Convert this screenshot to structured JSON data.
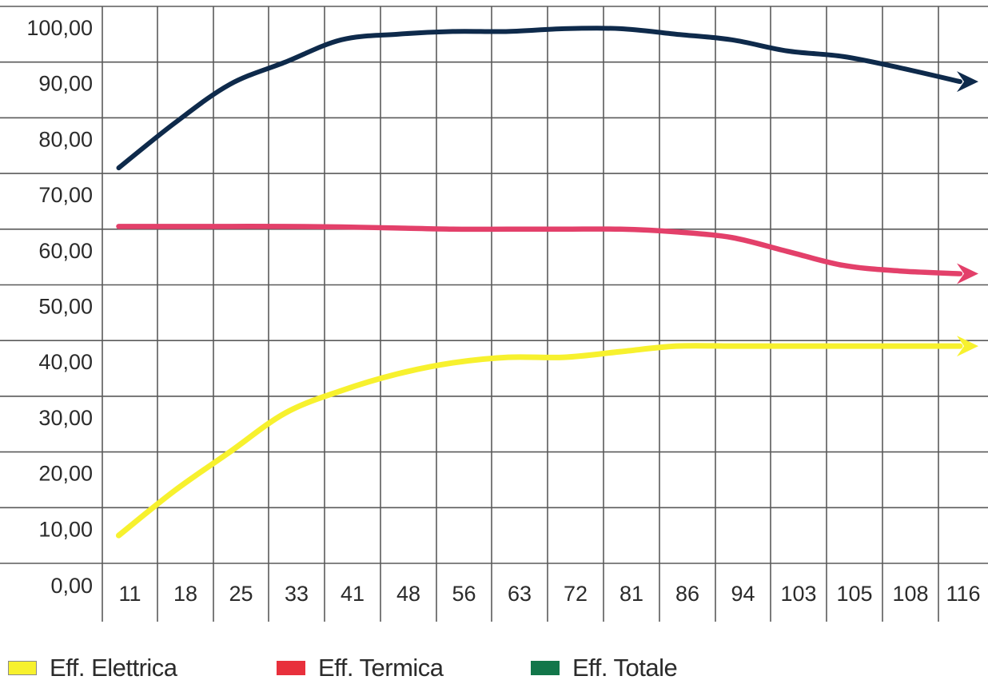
{
  "chart_data": {
    "type": "line",
    "title": "",
    "xlabel": "",
    "ylabel": "",
    "categories": [
      "11",
      "18",
      "25",
      "33",
      "41",
      "48",
      "56",
      "63",
      "72",
      "81",
      "86",
      "94",
      "103",
      "105",
      "108",
      "116"
    ],
    "y_tick_labels": [
      "0,00",
      "10,00",
      "20,00",
      "30,00",
      "40,00",
      "50,00",
      "60,00",
      "70,00",
      "80,00",
      "90,00",
      "100,00"
    ],
    "ylim": [
      0,
      100
    ],
    "grid": true,
    "legend_position": "bottom",
    "series": [
      {
        "name": "Eff. Elettrica",
        "color": "#f7f12e",
        "values": [
          5,
          13,
          20,
          27,
          31,
          34,
          36,
          37,
          37,
          38,
          39,
          39,
          39,
          39,
          39,
          39
        ]
      },
      {
        "name": "Eff. Termica",
        "color": "#e3406a",
        "values": [
          60.5,
          60.5,
          60.5,
          60.5,
          60.4,
          60.2,
          60,
          60,
          60,
          60,
          59.5,
          58.5,
          56,
          53.5,
          52.5,
          52
        ]
      },
      {
        "name": "Eff. Totale",
        "color": "#0e2a4b",
        "values": [
          71,
          79,
          86,
          90,
          94,
          95,
          95.5,
          95.5,
          96,
          96,
          95,
          94,
          92,
          91,
          89,
          86.5
        ]
      }
    ]
  }
}
